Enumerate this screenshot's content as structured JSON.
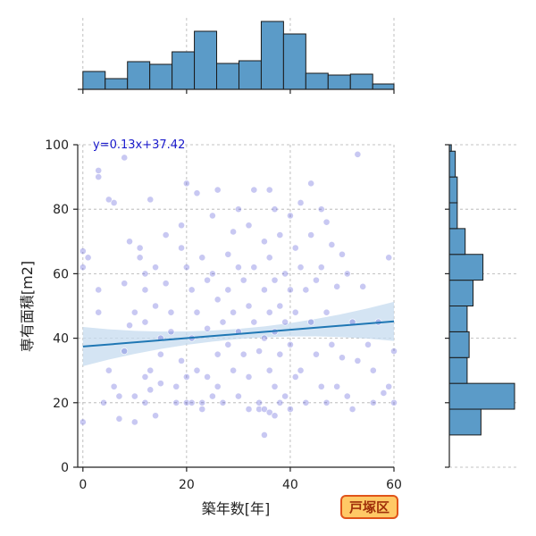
{
  "chart_data": {
    "type": "scatter",
    "xlabel": "築年数[年]",
    "ylabel": "専有面積[m2]",
    "xlim": [
      -1,
      60
    ],
    "ylim": [
      0,
      100
    ],
    "x_ticks": [
      0,
      20,
      40,
      60
    ],
    "y_ticks": [
      0,
      20,
      40,
      60,
      80,
      100
    ],
    "grid": true,
    "regression": {
      "label": "y=0.13x+37.42",
      "slope": 0.13,
      "intercept": 37.42,
      "color": "#1f77b4",
      "ci_color": "#c6dbef"
    },
    "badge": {
      "text": "戸塚区",
      "background": "#ffc966",
      "border": "#e0541a",
      "color": "#a0300a"
    },
    "point_color": "#3a3acf",
    "bar_color": "#5b9bc8",
    "hist_x": {
      "bin_edges": [
        0,
        4.3,
        8.6,
        12.9,
        17.2,
        21.5,
        25.8,
        30.1,
        34.4,
        38.7,
        43,
        47.3,
        51.6,
        55.9,
        60
      ],
      "counts": [
        20,
        12,
        31,
        28,
        42,
        65,
        29,
        32,
        76,
        62,
        18,
        16,
        17,
        6
      ]
    },
    "hist_y": {
      "bin_edges": [
        10,
        18,
        26,
        34,
        42,
        50,
        58,
        66,
        74,
        82,
        90,
        98,
        100
      ],
      "counts": [
        16,
        33,
        9,
        10,
        9,
        12,
        17,
        8,
        4,
        4,
        3,
        1
      ]
    },
    "points": [
      [
        0,
        14
      ],
      [
        0,
        62
      ],
      [
        0,
        67
      ],
      [
        1,
        65
      ],
      [
        3,
        92
      ],
      [
        3,
        90
      ],
      [
        3,
        55
      ],
      [
        3,
        48
      ],
      [
        4,
        20
      ],
      [
        5,
        30
      ],
      [
        5,
        83
      ],
      [
        6,
        25
      ],
      [
        6,
        82
      ],
      [
        7,
        22
      ],
      [
        7,
        15
      ],
      [
        8,
        36
      ],
      [
        8,
        96
      ],
      [
        8,
        57
      ],
      [
        9,
        44
      ],
      [
        9,
        70
      ],
      [
        10,
        22
      ],
      [
        10,
        14
      ],
      [
        10,
        48
      ],
      [
        11,
        68
      ],
      [
        11,
        65
      ],
      [
        12,
        60
      ],
      [
        12,
        55
      ],
      [
        12,
        45
      ],
      [
        12,
        28
      ],
      [
        12,
        20
      ],
      [
        13,
        83
      ],
      [
        13,
        30
      ],
      [
        13,
        24
      ],
      [
        14,
        62
      ],
      [
        14,
        50
      ],
      [
        14,
        16
      ],
      [
        15,
        40
      ],
      [
        15,
        35
      ],
      [
        15,
        26
      ],
      [
        16,
        72
      ],
      [
        16,
        57
      ],
      [
        17,
        48
      ],
      [
        17,
        42
      ],
      [
        18,
        20
      ],
      [
        18,
        25
      ],
      [
        19,
        75
      ],
      [
        19,
        68
      ],
      [
        19,
        33
      ],
      [
        20,
        88
      ],
      [
        20,
        62
      ],
      [
        20,
        20
      ],
      [
        20,
        28
      ],
      [
        21,
        55
      ],
      [
        21,
        40
      ],
      [
        21,
        20
      ],
      [
        22,
        48
      ],
      [
        22,
        30
      ],
      [
        22,
        85
      ],
      [
        23,
        65
      ],
      [
        23,
        20
      ],
      [
        23,
        18
      ],
      [
        24,
        58
      ],
      [
        24,
        43
      ],
      [
        24,
        28
      ],
      [
        25,
        78
      ],
      [
        25,
        60
      ],
      [
        25,
        22
      ],
      [
        26,
        86
      ],
      [
        26,
        52
      ],
      [
        26,
        35
      ],
      [
        26,
        25
      ],
      [
        27,
        45
      ],
      [
        27,
        20
      ],
      [
        28,
        66
      ],
      [
        28,
        55
      ],
      [
        28,
        38
      ],
      [
        29,
        73
      ],
      [
        29,
        48
      ],
      [
        29,
        30
      ],
      [
        30,
        80
      ],
      [
        30,
        62
      ],
      [
        30,
        42
      ],
      [
        30,
        22
      ],
      [
        31,
        58
      ],
      [
        31,
        35
      ],
      [
        32,
        75
      ],
      [
        32,
        50
      ],
      [
        32,
        28
      ],
      [
        32,
        18
      ],
      [
        33,
        86
      ],
      [
        33,
        62
      ],
      [
        33,
        45
      ],
      [
        34,
        36
      ],
      [
        34,
        20
      ],
      [
        34,
        18
      ],
      [
        35,
        70
      ],
      [
        35,
        55
      ],
      [
        35,
        40
      ],
      [
        35,
        18
      ],
      [
        35,
        10
      ],
      [
        36,
        86
      ],
      [
        36,
        65
      ],
      [
        36,
        48
      ],
      [
        36,
        30
      ],
      [
        36,
        17
      ],
      [
        37,
        80
      ],
      [
        37,
        58
      ],
      [
        37,
        42
      ],
      [
        37,
        25
      ],
      [
        37,
        16
      ],
      [
        38,
        72
      ],
      [
        38,
        50
      ],
      [
        38,
        35
      ],
      [
        38,
        20
      ],
      [
        39,
        60
      ],
      [
        39,
        45
      ],
      [
        39,
        22
      ],
      [
        40,
        78
      ],
      [
        40,
        55
      ],
      [
        40,
        38
      ],
      [
        40,
        18
      ],
      [
        41,
        68
      ],
      [
        41,
        48
      ],
      [
        41,
        28
      ],
      [
        42,
        82
      ],
      [
        42,
        62
      ],
      [
        42,
        30
      ],
      [
        43,
        55
      ],
      [
        43,
        20
      ],
      [
        44,
        88
      ],
      [
        44,
        72
      ],
      [
        44,
        45
      ],
      [
        45,
        58
      ],
      [
        45,
        35
      ],
      [
        46,
        80
      ],
      [
        46,
        62
      ],
      [
        46,
        25
      ],
      [
        47,
        76
      ],
      [
        47,
        48
      ],
      [
        47,
        20
      ],
      [
        48,
        69
      ],
      [
        48,
        38
      ],
      [
        49,
        56
      ],
      [
        49,
        25
      ],
      [
        50,
        66
      ],
      [
        50,
        34
      ],
      [
        51,
        60
      ],
      [
        51,
        22
      ],
      [
        52,
        45
      ],
      [
        52,
        18
      ],
      [
        53,
        97
      ],
      [
        53,
        33
      ],
      [
        54,
        56
      ],
      [
        55,
        38
      ],
      [
        56,
        30
      ],
      [
        56,
        20
      ],
      [
        57,
        45
      ],
      [
        58,
        23
      ],
      [
        59,
        65
      ],
      [
        59,
        25
      ],
      [
        60,
        36
      ],
      [
        60,
        20
      ]
    ]
  }
}
